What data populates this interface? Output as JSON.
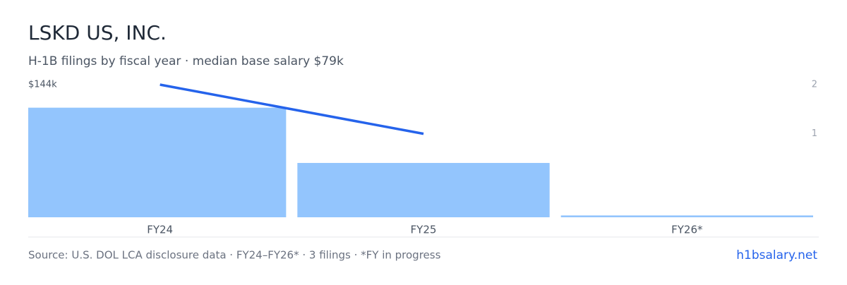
{
  "chart_data": {
    "type": "bar-line",
    "title": "LSKD US, INC.",
    "subtitle": "H-1B filings by fiscal year · median base salary $79k",
    "categories": [
      "FY24",
      "FY25",
      "FY26*"
    ],
    "series": [
      {
        "name": "Median base salary",
        "type": "bar",
        "color": "#93c5fd",
        "values": [
          119,
          59,
          2
        ]
      },
      {
        "name": "Filings",
        "type": "line",
        "color": "#2563eb",
        "axis": "y2",
        "values": [
          2,
          1,
          null
        ]
      }
    ],
    "ylim": [
      0,
      144
    ],
    "yticks": [
      {
        "value": 144,
        "label": "$144k"
      }
    ],
    "y2lim": [
      -0.7,
      2
    ],
    "y2ticks": [
      1,
      2
    ],
    "source": "Source: U.S. DOL LCA disclosure data · FY24–FY26* · 3 filings · *FY in progress",
    "site": "h1bsalary.net"
  }
}
